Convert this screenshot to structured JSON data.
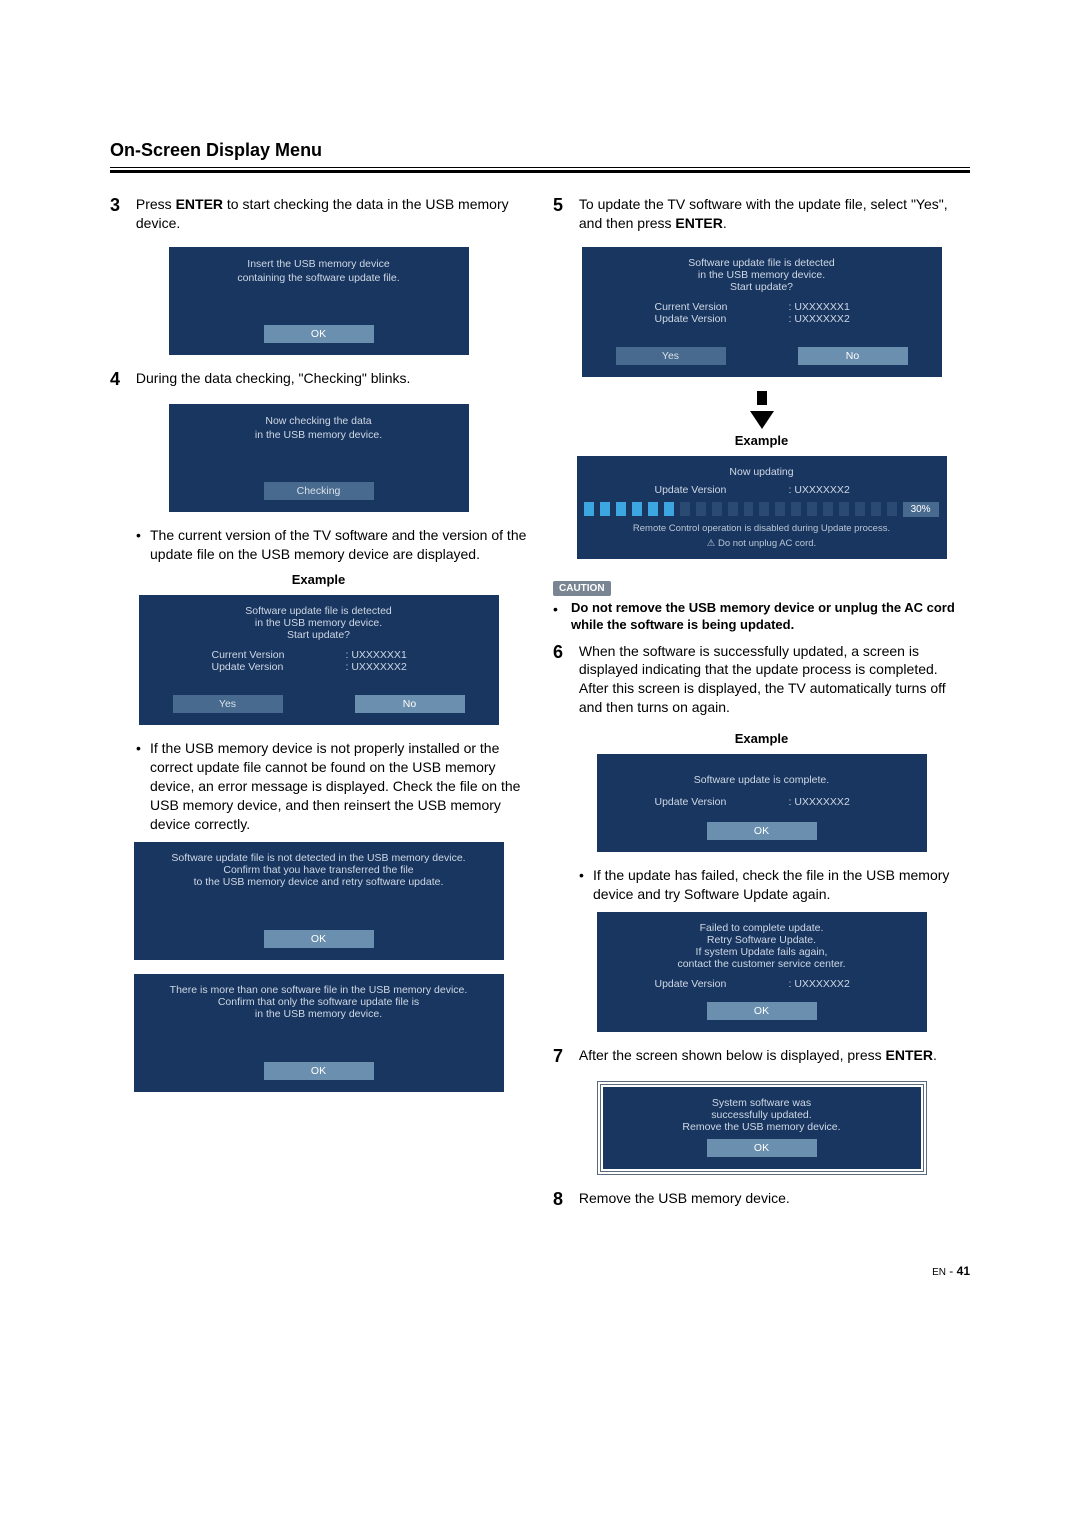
{
  "title": "On-Screen Display Menu",
  "left": {
    "step3": {
      "num": "3",
      "text_a": "Press ",
      "enter": "ENTER",
      "text_b": " to start checking the data in the USB memory device.",
      "box_msg": "Insert the USB memory device\ncontaining the software update file.",
      "ok": "OK"
    },
    "step4": {
      "num": "4",
      "text": "During the data checking, \"Checking\" blinks.",
      "box_msg": "Now checking the data\nin the USB memory device.",
      "checking": "Checking"
    },
    "bullet1": "The current version of the TV software and the version of the update file on the USB memory device are displayed.",
    "example1": {
      "label": "Example",
      "line1": "Software update file is detected",
      "line2": "in the USB memory device.",
      "line3": "Start update?",
      "cv_label": "Current Version",
      "cv_val": ":  UXXXXXX1",
      "uv_label": "Update Version",
      "uv_val": ":  UXXXXXX2",
      "yes": "Yes",
      "no": "No"
    },
    "bullet2": "If the USB memory device is not properly installed or the correct update file cannot be found on the USB memory device, an error message is displayed. Check the file on the USB memory device, and then reinsert the USB memory device correctly.",
    "errbox1": {
      "line1": "Software update file is not detected in the USB memory device.",
      "line2": "Confirm that you have transferred the file",
      "line3": "to the USB memory device and retry software update.",
      "ok": "OK"
    },
    "errbox2": {
      "line1": "There is more than one software file in the USB memory device.",
      "line2": "Confirm that only the software update file is",
      "line3": "in the USB memory device.",
      "ok": "OK"
    }
  },
  "right": {
    "step5": {
      "num": "5",
      "text_a": "To update the TV software with the update file, select \"Yes\", and then press ",
      "enter": "ENTER",
      "text_b": "."
    },
    "box5a": {
      "line1": "Software update file is detected",
      "line2": "in the USB memory device.",
      "line3": "Start update?",
      "cv_label": "Current Version",
      "cv_val": ":  UXXXXXX1",
      "uv_label": "Update Version",
      "uv_val": ":  UXXXXXX2",
      "yes": "Yes",
      "no": "No"
    },
    "example2": {
      "label": "Example",
      "now": "Now updating",
      "uv_label": "Update Version",
      "uv_val": ":  UXXXXXX2",
      "pct": "30%",
      "note1": "Remote Control operation is disabled during Update process.",
      "note2": "Do not unplug AC cord."
    },
    "caution": {
      "badge": "CAUTION",
      "text": "Do not remove the USB memory device or unplug the AC cord while the software is being updated."
    },
    "step6": {
      "num": "6",
      "text": "When the software is successfully updated, a screen is displayed indicating that the update process is completed.\nAfter this screen is displayed, the TV automatically turns off and then turns on again."
    },
    "example3": {
      "label": "Example",
      "msg": "Software update is complete.",
      "uv_label": "Update Version",
      "uv_val": ":  UXXXXXX2",
      "ok": "OK"
    },
    "bullet3": "If the update has failed, check the file in the USB memory device and try Software Update again.",
    "failbox": {
      "line1": "Failed to complete update.",
      "line2": "Retry Software Update.",
      "line3": "If system Update fails again,",
      "line4": "contact the customer service center.",
      "uv_label": "Update Version",
      "uv_val": ":  UXXXXXX2",
      "ok": "OK"
    },
    "step7": {
      "num": "7",
      "text_a": "After the screen shown below is displayed, press ",
      "enter": "ENTER",
      "text_b": "."
    },
    "successbox": {
      "line1": "System software was",
      "line2": "successfully updated.",
      "line3": "Remove the USB memory device.",
      "ok": "OK"
    },
    "step8": {
      "num": "8",
      "text": "Remove the USB memory device."
    }
  },
  "page": {
    "lang": "EN",
    "dash": " - ",
    "num": "41"
  },
  "progress": {
    "filled": 6,
    "total": 20
  }
}
